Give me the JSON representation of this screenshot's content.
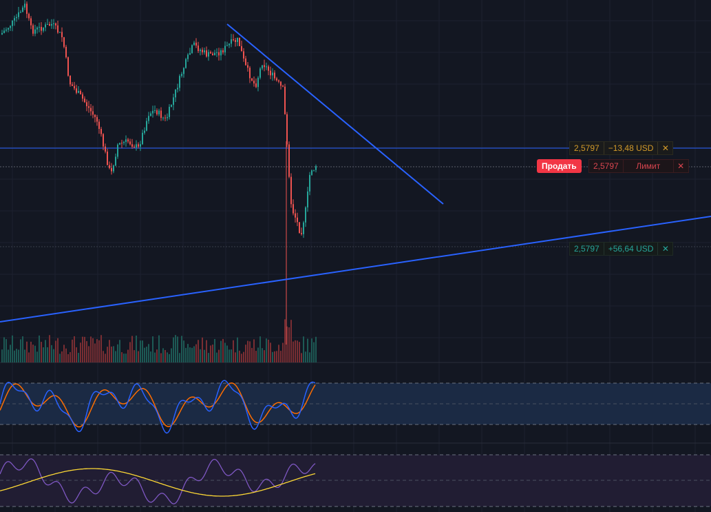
{
  "colors": {
    "background": "#131722",
    "bull": "#26a69a",
    "bear": "#ef5350",
    "trendline": "#2962ff",
    "stoch_k": "#2962ff",
    "stoch_d": "#ff6d00",
    "rsi": "#7e57c2",
    "rsi_ma": "#fdd835"
  },
  "orders": {
    "take_profit": {
      "price": "2,5797",
      "pnl": "−13,48 USD",
      "close_icon": "close-x-icon"
    },
    "limit": {
      "side_button": "Продать",
      "price": "2,5797",
      "type": "Лимит",
      "close_icon": "close-x-icon"
    },
    "stop_loss": {
      "price": "2,5797",
      "pnl": "+56,64 USD",
      "close_icon": "close-x-icon"
    }
  },
  "panes": {
    "price": {
      "type": "candlestick",
      "trendlines": 2,
      "volume": true
    },
    "stochastic": {
      "lines": [
        "%K",
        "%D"
      ],
      "bands": [
        20,
        50,
        80
      ]
    },
    "rsi": {
      "lines": [
        "RSI",
        "MA"
      ],
      "bands": [
        30,
        50,
        70
      ]
    }
  }
}
